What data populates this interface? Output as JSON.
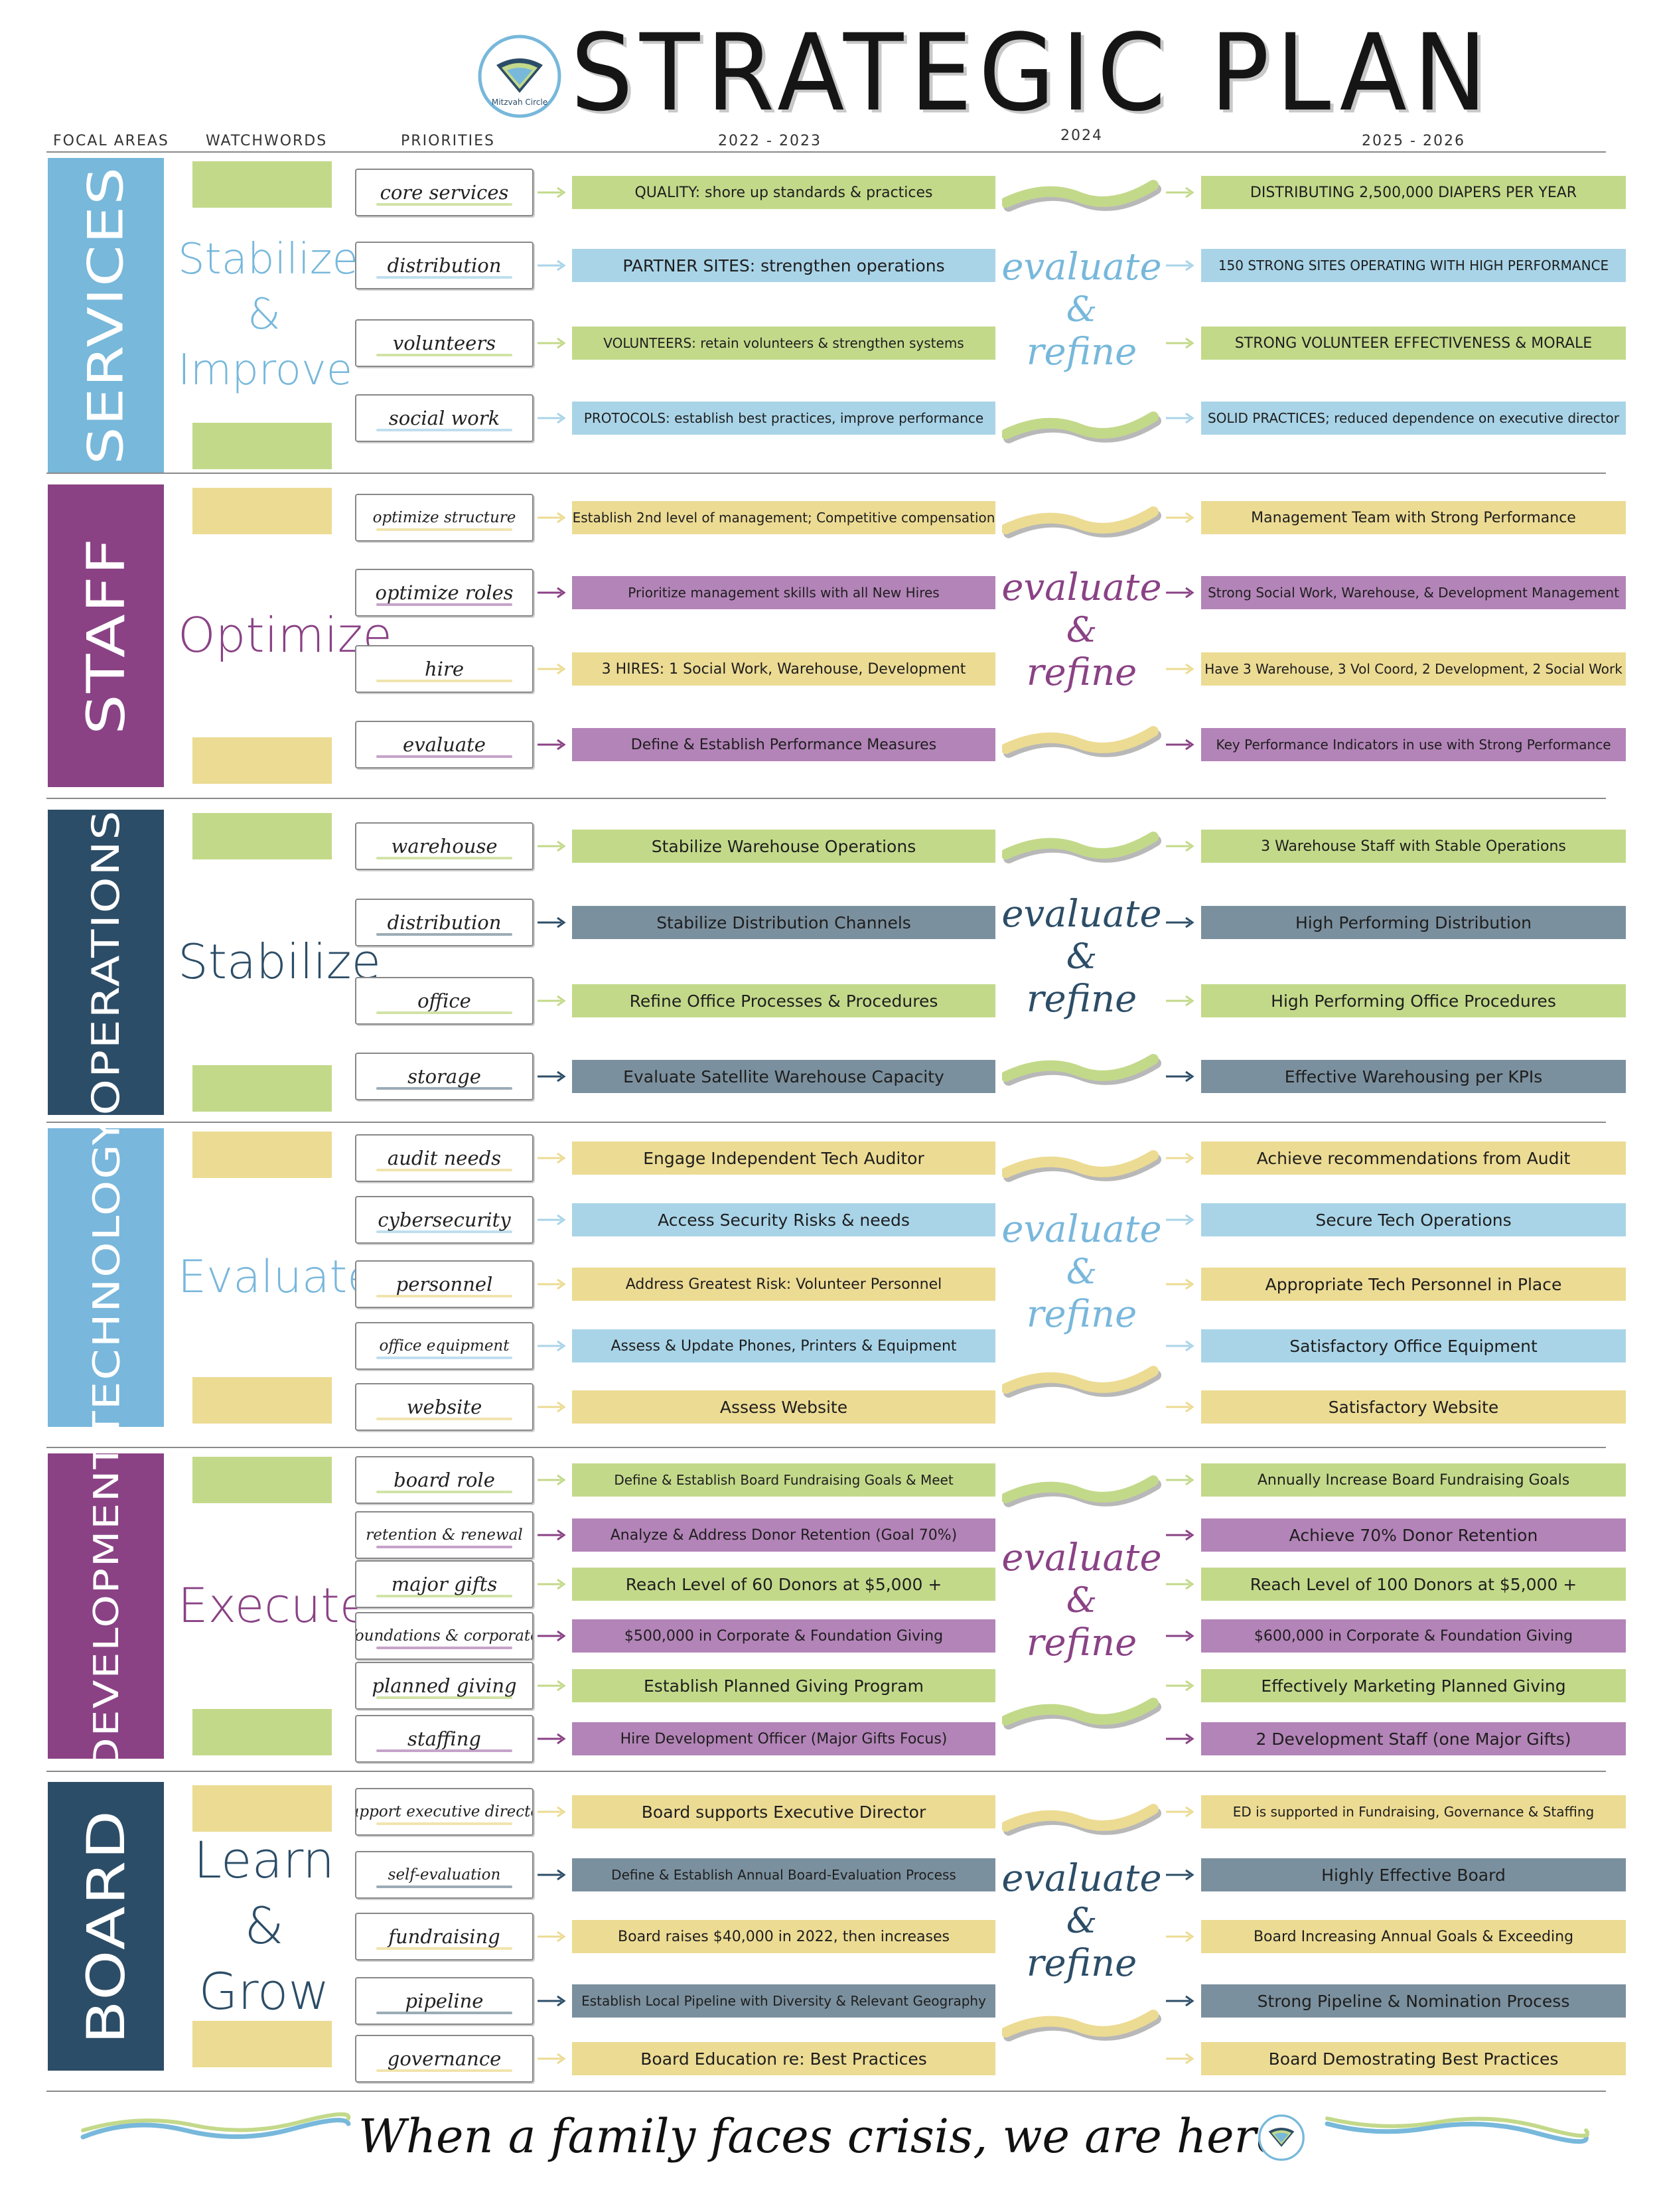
{
  "header": {
    "title": "STRATEGIC PLAN",
    "logo_text": "Mitzvah Circle",
    "columns": {
      "focal_areas": "FOCAL AREAS",
      "watchwords": "WATCHWORDS",
      "priorities": "PRIORITIES",
      "year_1": "2022 - 2023",
      "year_2": "2024",
      "year_3": "2025 - 2026"
    }
  },
  "evaluate": {
    "word1": "evaluate",
    "amp": "&",
    "word2": "refine"
  },
  "colors": {
    "green": "#c3d98a",
    "blue": "#a9d4e8",
    "purple": "#b384b8",
    "yellow": "#ecdb93",
    "slate": "#7b909e",
    "services": "#77b8db",
    "staff": "#8a4285",
    "operations": "#2c4d67",
    "technology": "#79b7dc",
    "development": "#8a4285",
    "board": "#2c4d67"
  },
  "sections": [
    {
      "focal": "SERVICES",
      "watchword": [
        "Stabilize",
        "&",
        "Improve"
      ],
      "rows": [
        {
          "priority": "core services",
          "y1": "QUALITY: shore up standards & practices",
          "y3": "DISTRIBUTING 2,500,000 DIAPERS PER YEAR"
        },
        {
          "priority": "distribution",
          "y1": "PARTNER SITES: strengthen operations",
          "y3": "150 STRONG SITES OPERATING WITH HIGH PERFORMANCE"
        },
        {
          "priority": "volunteers",
          "y1": "VOLUNTEERS: retain volunteers & strengthen systems",
          "y3": "STRONG VOLUNTEER EFFECTIVENESS & MORALE"
        },
        {
          "priority": "social work",
          "y1": "PROTOCOLS: establish best practices, improve performance",
          "y3": "SOLID PRACTICES; reduced dependence on executive director"
        }
      ]
    },
    {
      "focal": "STAFF",
      "watchword": [
        "Optimize"
      ],
      "rows": [
        {
          "priority": "optimize structure",
          "y1": "Establish 2nd level of management; Competitive compensation",
          "y3": "Management Team with Strong Performance"
        },
        {
          "priority": "optimize roles",
          "y1": "Prioritize management skills with all New Hires",
          "y3": "Strong Social Work, Warehouse, & Development Management"
        },
        {
          "priority": "hire",
          "y1": "3 HIRES: 1 Social Work, Warehouse, Development",
          "y3": "Have 3 Warehouse, 3 Vol Coord, 2 Development, 2 Social Work"
        },
        {
          "priority": "evaluate",
          "y1": "Define & Establish Performance Measures",
          "y3": "Key Performance Indicators in use with Strong Performance"
        }
      ]
    },
    {
      "focal": "OPERATIONS",
      "watchword": [
        "Stabilize"
      ],
      "rows": [
        {
          "priority": "warehouse",
          "y1": "Stabilize Warehouse Operations",
          "y3": "3 Warehouse Staff with Stable Operations"
        },
        {
          "priority": "distribution",
          "y1": "Stabilize Distribution Channels",
          "y3": "High Performing Distribution"
        },
        {
          "priority": "office",
          "y1": "Refine Office Processes & Procedures",
          "y3": "High Performing Office Procedures"
        },
        {
          "priority": "storage",
          "y1": "Evaluate Satellite Warehouse Capacity",
          "y3": "Effective Warehousing per KPIs"
        }
      ]
    },
    {
      "focal": "TECHNOLOGY",
      "watchword": [
        "Evaluate"
      ],
      "rows": [
        {
          "priority": "audit needs",
          "y1": "Engage Independent Tech Auditor",
          "y3": "Achieve recommendations from Audit"
        },
        {
          "priority": "cybersecurity",
          "y1": "Access Security Risks & needs",
          "y3": "Secure Tech Operations"
        },
        {
          "priority": "personnel",
          "y1": "Address Greatest Risk: Volunteer Personnel",
          "y3": "Appropriate Tech Personnel in Place"
        },
        {
          "priority": "office equipment",
          "y1": "Assess & Update Phones, Printers & Equipment",
          "y3": "Satisfactory Office Equipment"
        },
        {
          "priority": "website",
          "y1": "Assess Website",
          "y3": "Satisfactory Website"
        }
      ]
    },
    {
      "focal": "DEVELOPMENT",
      "watchword": [
        "Execute"
      ],
      "rows": [
        {
          "priority": "board role",
          "y1": "Define & Establish Board Fundraising Goals & Meet",
          "y3": "Annually Increase Board Fundraising Goals"
        },
        {
          "priority": "retention & renewal",
          "y1": "Analyze & Address Donor Retention (Goal 70%)",
          "y3": "Achieve 70% Donor Retention"
        },
        {
          "priority": "major gifts",
          "y1": "Reach Level of 60 Donors at $5,000 +",
          "y3": "Reach Level of 100 Donors at $5,000 +"
        },
        {
          "priority": "foundations & corporate",
          "y1": "$500,000 in Corporate & Foundation Giving",
          "y3": "$600,000 in Corporate & Foundation Giving"
        },
        {
          "priority": "planned giving",
          "y1": "Establish Planned Giving Program",
          "y3": "Effectively Marketing Planned Giving"
        },
        {
          "priority": "staffing",
          "y1": "Hire Development Officer (Major Gifts Focus)",
          "y3": "2 Development Staff (one Major Gifts)"
        }
      ]
    },
    {
      "focal": "BOARD",
      "watchword": [
        "Learn",
        "&",
        "Grow"
      ],
      "rows": [
        {
          "priority": "support executive director",
          "y1": "Board supports Executive Director",
          "y3": "ED is supported in Fundraising, Governance & Staffing"
        },
        {
          "priority": "self-evaluation",
          "y1": "Define & Establish Annual Board-Evaluation Process",
          "y3": "Highly Effective Board"
        },
        {
          "priority": "fundraising",
          "y1": "Board raises $40,000 in 2022, then increases",
          "y3": "Board Increasing Annual Goals & Exceeding"
        },
        {
          "priority": "pipeline",
          "y1": "Establish Local Pipeline with Diversity & Relevant Geography",
          "y3": "Strong Pipeline & Nomination Process"
        },
        {
          "priority": "governance",
          "y1": "Board Education re: Best Practices",
          "y3": "Board Demostrating Best Practices"
        }
      ]
    }
  ],
  "footer": {
    "tagline": "When a family faces crisis, we are here."
  }
}
